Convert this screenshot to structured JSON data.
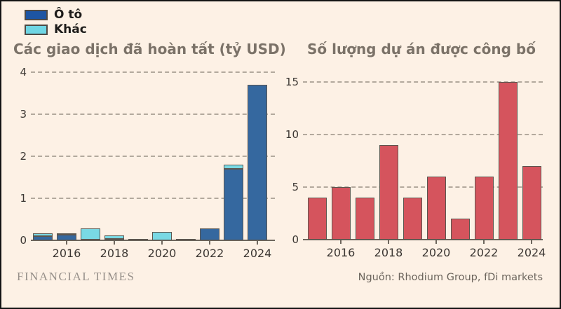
{
  "legend": {
    "items": [
      {
        "name": "oto",
        "label": "Ô tô",
        "color": "#1d55a3"
      },
      {
        "name": "khac",
        "label": "Khác",
        "color": "#6fd6e4"
      }
    ]
  },
  "chart_data": [
    {
      "id": "deals",
      "type": "bar",
      "stacked": true,
      "title": "Các giao dịch đã hoàn tất (tỷ USD)",
      "categories": [
        "2015",
        "2016",
        "2017",
        "2018",
        "2019",
        "2020",
        "2021",
        "2022",
        "2023",
        "2024"
      ],
      "series": [
        {
          "name": "Ô tô",
          "color": "#35689f",
          "values": [
            0.1,
            0.14,
            0.02,
            0.03,
            0.02,
            0.0,
            0.02,
            0.28,
            1.7,
            3.7
          ]
        },
        {
          "name": "Khác",
          "color": "#79d9e4",
          "values": [
            0.07,
            0.02,
            0.26,
            0.08,
            0.0,
            0.2,
            0.0,
            0.0,
            0.1,
            0.0
          ]
        }
      ],
      "xlabel": "",
      "ylabel": "",
      "ylim": [
        0,
        4
      ],
      "yticks": [
        0,
        1,
        2,
        3,
        4
      ],
      "ytick_labels": [
        "0",
        "1",
        "2",
        "3",
        "4"
      ],
      "xtick_labels": [
        "2016",
        "2018",
        "2020",
        "2022",
        "2024"
      ],
      "xtick_indices": [
        1,
        3,
        5,
        7,
        9
      ],
      "grid": "horizontal-dashed",
      "legend_position": "top-left"
    },
    {
      "id": "projects",
      "type": "bar",
      "stacked": false,
      "title": "Số lượng dự án được công bố",
      "categories": [
        "2015",
        "2016",
        "2017",
        "2018",
        "2019",
        "2020",
        "2021",
        "2022",
        "2023",
        "2024"
      ],
      "values": [
        4,
        5,
        4,
        9,
        4,
        6,
        2,
        6,
        15,
        7
      ],
      "bar_color": "#d5545d",
      "xlabel": "",
      "ylabel": "",
      "ylim": [
        0,
        15
      ],
      "yticks": [
        0,
        5,
        10,
        15
      ],
      "ytick_labels": [
        "0",
        "5",
        "10",
        "15"
      ],
      "xtick_labels": [
        "2016",
        "2018",
        "2020",
        "2022",
        "2024"
      ],
      "xtick_indices": [
        1,
        3,
        5,
        7,
        9
      ],
      "grid": "horizontal-dashed",
      "legend_position": "none"
    }
  ],
  "titles": {
    "deals": "Các giao dịch đã hoàn tất (tỷ USD)",
    "projects": "Số lượng dự án được công bố"
  },
  "footer": {
    "brand": "FINANCIAL TIMES",
    "source": "Nguồn: Rhodium Group, fDi markets"
  },
  "colors": {
    "background": "#fdf1e5",
    "frame_border": "#141414",
    "bar_outline": "#5c564f",
    "gridline": "#b3a99d",
    "axis": "#6e665d",
    "title_text": "#7b7268",
    "tick_text": "#3c3733",
    "blue": "#35689f",
    "cyan": "#79d9e4",
    "red": "#d5545d"
  }
}
